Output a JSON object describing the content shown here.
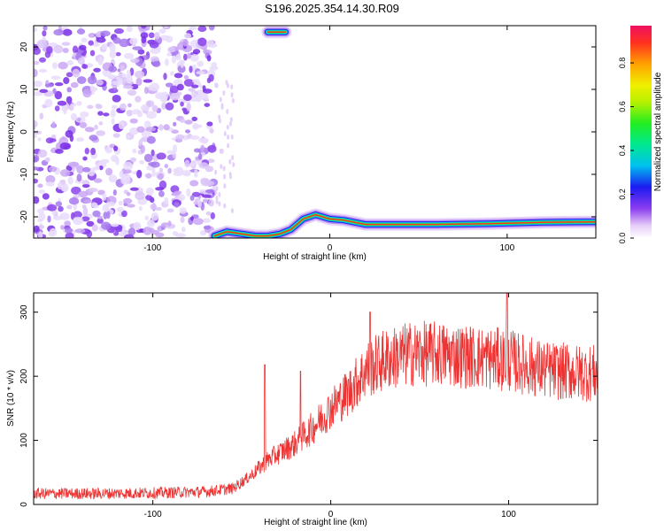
{
  "title": "S196.2025.354.14.30.R09",
  "chart_data": [
    {
      "type": "heatmap",
      "title": "S196.2025.354.14.30.R09",
      "xlabel": "Height of straight line (km)",
      "ylabel": "Frequency (Hz)",
      "xlim": [
        -167,
        150
      ],
      "ylim": [
        -25,
        25
      ],
      "xticks": [
        -100,
        0,
        100
      ],
      "yticks": [
        -20,
        -10,
        0,
        10,
        20
      ],
      "colorbar": {
        "label": "Normalized spectral amplitude",
        "range": [
          0,
          0.97
        ],
        "ticks": [
          0.0,
          0.2,
          0.4,
          0.6,
          0.8
        ]
      },
      "ridge": {
        "description": "narrow high-amplitude signal track",
        "points": [
          [
            -65,
            -24.5
          ],
          [
            -58,
            -23.5
          ],
          [
            -50,
            -24
          ],
          [
            -42,
            -24.5
          ],
          [
            -35,
            -24.5
          ],
          [
            -28,
            -24
          ],
          [
            -22,
            -23
          ],
          [
            -15,
            -20.5
          ],
          [
            -8,
            -19.5
          ],
          [
            0,
            -20.5
          ],
          [
            8,
            -20.8
          ],
          [
            20,
            -21.8
          ],
          [
            60,
            -21.8
          ],
          [
            90,
            -21.6
          ],
          [
            100,
            -21.5
          ],
          [
            120,
            -21.3
          ],
          [
            150,
            -21.2
          ]
        ],
        "upper_segment": [
          [
            -35,
            23.5
          ],
          [
            -25,
            23.5
          ]
        ]
      },
      "noise_region_x": [
        -167,
        -65
      ]
    },
    {
      "type": "line",
      "xlabel": "Height of straight line (km)",
      "ylabel": "SNR (10 * v/v)",
      "xlim": [
        -167,
        150
      ],
      "ylim": [
        0,
        330
      ],
      "xticks": [
        -100,
        0,
        100
      ],
      "yticks": [
        0,
        100,
        200,
        300
      ],
      "series": [
        {
          "name": "SNR",
          "color": "#ee3333",
          "trend": [
            [
              -167,
              17
            ],
            [
              -130,
              17
            ],
            [
              -100,
              18
            ],
            [
              -70,
              20
            ],
            [
              -55,
              25
            ],
            [
              -45,
              45
            ],
            [
              -35,
              70
            ],
            [
              -20,
              95
            ],
            [
              -10,
              120
            ],
            [
              0,
              150
            ],
            [
              10,
              175
            ],
            [
              20,
              210
            ],
            [
              30,
              225
            ],
            [
              45,
              235
            ],
            [
              60,
              235
            ],
            [
              80,
              230
            ],
            [
              100,
              225
            ],
            [
              120,
              210
            ],
            [
              140,
              205
            ],
            [
              150,
              205
            ]
          ],
          "spikes": [
            [
              -37,
              218
            ],
            [
              -17,
              208
            ],
            [
              22,
              300
            ],
            [
              99,
              330
            ]
          ]
        }
      ]
    }
  ]
}
